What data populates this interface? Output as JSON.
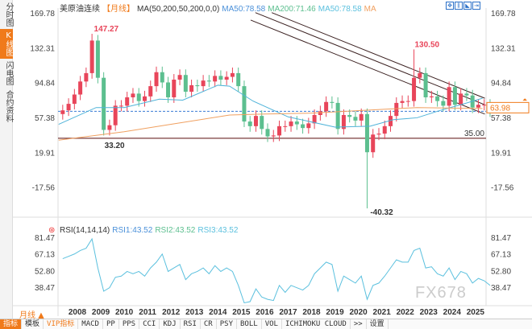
{
  "sidebar": {
    "tabs": [
      {
        "label": "分时图",
        "active": false
      },
      {
        "label": "K线图",
        "active": true
      },
      {
        "label": "闪电图",
        "active": false
      },
      {
        "label": "合约资料",
        "active": false
      }
    ]
  },
  "header": {
    "symbol": "美原油连续",
    "period": "【月线】",
    "indicator": "MA(50,200,50,200,0,0)",
    "ma1": "MA50:78.58",
    "ma2": "MA200:71.46",
    "ma3": "MA50:78.58",
    "ma4": "MA"
  },
  "rsi_header": {
    "title": "RSI(14,14,14)",
    "rsi1": "RSI1:43.52",
    "rsi2": "RSI2:43.52",
    "rsi3": "RSI3:43.52"
  },
  "period_selector": "月线 ▲",
  "watermark": "FX678",
  "toolbar": [
    "指标",
    "模板",
    "VIP指标",
    "MACD",
    "PP",
    "PPS",
    "CCI",
    "KDJ",
    "RSI",
    "CR",
    "PSY",
    "BOLL",
    "VOL",
    "ICHIMOKU CLOUD",
    ">>",
    "设置"
  ],
  "colors": {
    "up": "#e8455a",
    "down": "#5cbf8f",
    "ma50": "#4fb3d9",
    "ma200": "#f0a060",
    "rsi": "#5bc0de",
    "accent": "#f07a1a"
  },
  "chart_data": [
    {
      "type": "candlestick",
      "title": "美原油连续",
      "price_ticks": [
        "169.78",
        "132.31",
        "94.84",
        "57.38",
        "19.91",
        "-17.56"
      ],
      "x_ticks": [
        "2008",
        "2009",
        "2010",
        "2011",
        "2012",
        "2013",
        "2014",
        "2015",
        "2016",
        "2017",
        "2018",
        "2019",
        "2020",
        "2021",
        "2022",
        "2023",
        "2024",
        "2025"
      ],
      "start": 2007.25,
      "step": 0.25,
      "closes": [
        65,
        72,
        82,
        96,
        105,
        140,
        100,
        44,
        49,
        70,
        70,
        79,
        83,
        75,
        80,
        91,
        106,
        95,
        79,
        98,
        103,
        85,
        92,
        91,
        97,
        96,
        102,
        98,
        101,
        105,
        91,
        53,
        48,
        59,
        45,
        37,
        38,
        48,
        48,
        53,
        50,
        46,
        51,
        60,
        64,
        74,
        73,
        45,
        60,
        58,
        54,
        61,
        20,
        39,
        40,
        48,
        59,
        73,
        75,
        75,
        100,
        105,
        79,
        80,
        75,
        70,
        90,
        71,
        83,
        81,
        68,
        71,
        71,
        64
      ],
      "annotations": {
        "high": {
          "label": "147.27",
          "date": 2008.5,
          "value": 147.27
        },
        "high2": {
          "label": "130.50",
          "date": 2022.2,
          "value": 130.5
        },
        "low": {
          "label": "-40.32",
          "date": 2020.3,
          "value": -40.32
        },
        "low1": {
          "label": "33.20",
          "date": 2008.95,
          "value": 33.2
        },
        "support": {
          "label": "35.00",
          "value": 35
        },
        "last": {
          "label": "63.98",
          "value": 63.98
        }
      },
      "ma50": [
        [
          2007.2,
          50
        ],
        [
          2008.8,
          68
        ],
        [
          2010,
          68
        ],
        [
          2011.5,
          77
        ],
        [
          2012.5,
          76
        ],
        [
          2014,
          92
        ],
        [
          2014.5,
          91
        ],
        [
          2015.5,
          75
        ],
        [
          2017,
          58
        ],
        [
          2019,
          47
        ],
        [
          2020.5,
          48
        ],
        [
          2021.5,
          55
        ],
        [
          2022.5,
          57
        ],
        [
          2023.5,
          65
        ],
        [
          2024.5,
          72
        ],
        [
          2025.3,
          78
        ]
      ],
      "ma200": [
        [
          2007.2,
          33
        ],
        [
          2010,
          42
        ],
        [
          2012,
          50
        ],
        [
          2014.5,
          60
        ],
        [
          2016,
          61
        ],
        [
          2018,
          62
        ],
        [
          2021,
          66
        ],
        [
          2022.5,
          68
        ],
        [
          2025.3,
          67
        ]
      ],
      "channel": [
        [
          [
            2015.6,
            170
          ],
          [
            2025.4,
            71
          ]
        ],
        [
          [
            2016.3,
            170
          ],
          [
            2025.4,
            78
          ]
        ],
        [
          [
            2015.4,
            162
          ],
          [
            2025.4,
            61
          ]
        ]
      ]
    },
    {
      "type": "line",
      "title": "RSI(14,14,14)",
      "ticks": [
        "81.47",
        "67.13",
        "52.80",
        "38.47"
      ],
      "values": [
        63,
        65,
        67,
        70,
        72,
        80,
        55,
        35,
        38,
        47,
        48,
        52,
        50,
        52,
        48,
        55,
        60,
        67,
        52,
        55,
        58,
        45,
        50,
        52,
        55,
        50,
        57,
        52,
        55,
        52,
        40,
        25,
        26,
        37,
        30,
        28,
        27,
        40,
        34,
        40,
        38,
        36,
        40,
        50,
        55,
        60,
        58,
        35,
        48,
        45,
        42,
        48,
        28,
        40,
        42,
        48,
        55,
        62,
        60,
        60,
        70,
        72,
        55,
        56,
        50,
        48,
        55,
        45,
        52,
        50,
        42,
        46,
        44,
        40
      ]
    }
  ]
}
